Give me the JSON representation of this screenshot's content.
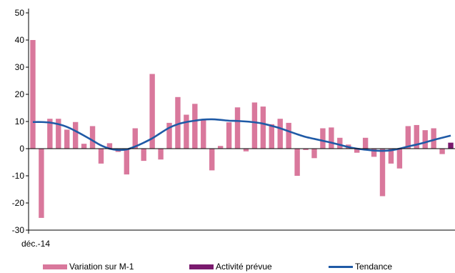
{
  "chart_data": {
    "type": "bar",
    "x_start_label": "déc.-14",
    "ylim": [
      -30,
      50
    ],
    "yticks": [
      -30,
      -20,
      -10,
      0,
      10,
      20,
      30,
      40,
      50
    ],
    "grid": false,
    "legend_position": "bottom",
    "series": [
      {
        "name": "Variation sur M-1",
        "type": "bar",
        "color": "#d9789c",
        "values": [
          40,
          -25.5,
          11,
          11,
          7,
          9.8,
          1.8,
          8.3,
          -5.5,
          2,
          -1.2,
          -9.5,
          7.5,
          -4.5,
          27.5,
          -4,
          9.5,
          19,
          12.5,
          16.5,
          10.5,
          -8,
          1,
          9.7,
          15.2,
          -1,
          17,
          15.5,
          9,
          11,
          9.5,
          -10,
          -0.5,
          -3.5,
          7.5,
          7.8,
          4,
          1.5,
          -1.5,
          4,
          -3,
          -17.5,
          -5.5,
          -7.3,
          8.3,
          8.7,
          6.8,
          7.5,
          -2,
          null
        ]
      },
      {
        "name": "Activité prévue",
        "type": "bar",
        "color": "#7a1a6e",
        "values": [
          null,
          null,
          null,
          null,
          null,
          null,
          null,
          null,
          null,
          null,
          null,
          null,
          null,
          null,
          null,
          null,
          null,
          null,
          null,
          null,
          null,
          null,
          null,
          null,
          null,
          null,
          null,
          null,
          null,
          null,
          null,
          null,
          null,
          null,
          null,
          null,
          null,
          null,
          null,
          null,
          null,
          null,
          null,
          null,
          null,
          null,
          null,
          null,
          null,
          2.2
        ]
      },
      {
        "name": "Tendance",
        "type": "line",
        "color": "#1f5aa6",
        "values": [
          9.8,
          9.8,
          9.6,
          9,
          8,
          6.5,
          4.8,
          3,
          1.2,
          0,
          -0.5,
          -0.3,
          0.8,
          2.2,
          3.8,
          5.8,
          7.7,
          9,
          9.8,
          10.3,
          10.7,
          10.8,
          10.6,
          10.3,
          10.2,
          10,
          9.7,
          9.2,
          8.4,
          7.5,
          6.4,
          5.3,
          4.3,
          3.6,
          2.9,
          2.2,
          1.4,
          0.6,
          0,
          -0.4,
          -0.7,
          -0.8,
          -0.6,
          0,
          0.8,
          1.5,
          2.3,
          3.2,
          4,
          4.8
        ]
      }
    ]
  }
}
